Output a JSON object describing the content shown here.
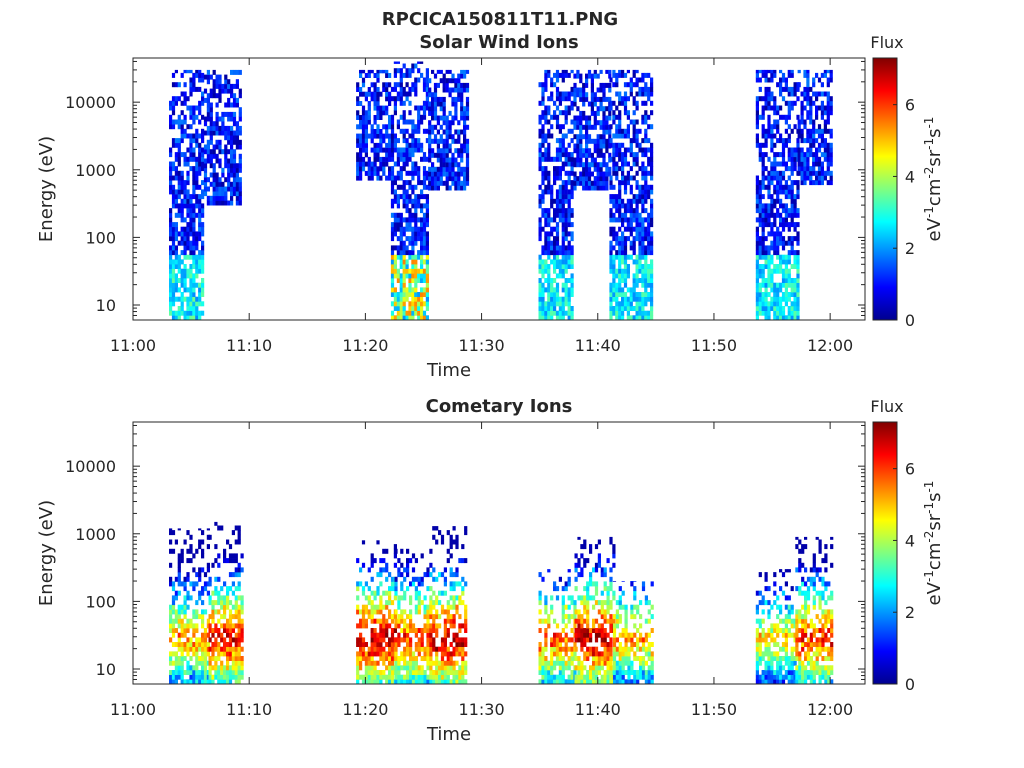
{
  "figure": {
    "title": "RPCICA150811T11.PNG"
  },
  "chart_data": [
    {
      "type": "heatmap",
      "title": "Solar Wind Ions",
      "xlabel": "Time",
      "ylabel": "Energy (eV)",
      "x_ticks": [
        "11:00",
        "11:10",
        "11:20",
        "11:30",
        "11:40",
        "11:50",
        "12:00"
      ],
      "x_range_minutes": [
        0,
        63
      ],
      "y_scale": "log",
      "y_ticks": [
        "10",
        "100",
        "1000",
        "10000"
      ],
      "y_range": [
        6,
        45000
      ],
      "colorbar": {
        "title": "Flux",
        "label": "eV-1cm-2sr-1s-1",
        "ticks": [
          "0",
          "2",
          "4",
          "6"
        ],
        "range": [
          0,
          7.3
        ],
        "colormap": "jet"
      },
      "bursts": [
        {
          "t_start": 3.1,
          "t_end": 6.1,
          "e_min": 6,
          "e_max": 30000,
          "peak_flux": 3.6
        },
        {
          "t_start": 6.1,
          "t_end": 9.2,
          "e_min": 300,
          "e_max": 30000,
          "peak_flux": 1.8
        },
        {
          "t_start": 19.2,
          "t_end": 22.2,
          "e_min": 700,
          "e_max": 30000,
          "peak_flux": 1.6
        },
        {
          "t_start": 22.2,
          "t_end": 25.4,
          "e_min": 6,
          "e_max": 40000,
          "peak_flux": 5.5
        },
        {
          "t_start": 25.4,
          "t_end": 28.7,
          "e_min": 500,
          "e_max": 30000,
          "peak_flux": 1.8
        },
        {
          "t_start": 34.9,
          "t_end": 37.9,
          "e_min": 6,
          "e_max": 30000,
          "peak_flux": 3.4
        },
        {
          "t_start": 37.9,
          "t_end": 41.0,
          "e_min": 500,
          "e_max": 30000,
          "peak_flux": 1.6
        },
        {
          "t_start": 41.0,
          "t_end": 44.6,
          "e_min": 6,
          "e_max": 30000,
          "peak_flux": 3.4
        },
        {
          "t_start": 53.6,
          "t_end": 57.2,
          "e_min": 6,
          "e_max": 30000,
          "peak_flux": 3.4
        },
        {
          "t_start": 57.2,
          "t_end": 60.2,
          "e_min": 600,
          "e_max": 30000,
          "peak_flux": 1.8
        }
      ]
    },
    {
      "type": "heatmap",
      "title": "Cometary Ions",
      "xlabel": "Time",
      "ylabel": "Energy (eV)",
      "x_ticks": [
        "11:00",
        "11:10",
        "11:20",
        "11:30",
        "11:40",
        "11:50",
        "12:00"
      ],
      "x_range_minutes": [
        0,
        63
      ],
      "y_scale": "log",
      "y_ticks": [
        "10",
        "100",
        "1000",
        "10000"
      ],
      "y_range": [
        6,
        45000
      ],
      "colorbar": {
        "title": "Flux",
        "label": "eV-1cm-2sr-1s-1",
        "ticks": [
          "0",
          "2",
          "4",
          "6"
        ],
        "range": [
          0,
          7.3
        ],
        "colormap": "jet"
      },
      "bursts": [
        {
          "t_start": 3.1,
          "t_end": 6.5,
          "e_min": 6,
          "e_max": 1200,
          "peak_flux": 5.6
        },
        {
          "t_start": 6.5,
          "t_end": 9.4,
          "e_min": 6,
          "e_max": 1500,
          "peak_flux": 6.6
        },
        {
          "t_start": 19.2,
          "t_end": 22.5,
          "e_min": 6,
          "e_max": 800,
          "peak_flux": 7.0
        },
        {
          "t_start": 22.5,
          "t_end": 25.5,
          "e_min": 6,
          "e_max": 600,
          "peak_flux": 6.3
        },
        {
          "t_start": 25.5,
          "t_end": 28.7,
          "e_min": 6,
          "e_max": 1300,
          "peak_flux": 7.0
        },
        {
          "t_start": 34.9,
          "t_end": 38.0,
          "e_min": 6,
          "e_max": 300,
          "peak_flux": 6.0
        },
        {
          "t_start": 38.0,
          "t_end": 41.3,
          "e_min": 6,
          "e_max": 900,
          "peak_flux": 7.0
        },
        {
          "t_start": 41.3,
          "t_end": 44.6,
          "e_min": 6,
          "e_max": 200,
          "peak_flux": 5.5
        },
        {
          "t_start": 53.6,
          "t_end": 57.0,
          "e_min": 6,
          "e_max": 300,
          "peak_flux": 5.0
        },
        {
          "t_start": 57.0,
          "t_end": 60.2,
          "e_min": 6,
          "e_max": 900,
          "peak_flux": 6.3
        }
      ]
    }
  ]
}
